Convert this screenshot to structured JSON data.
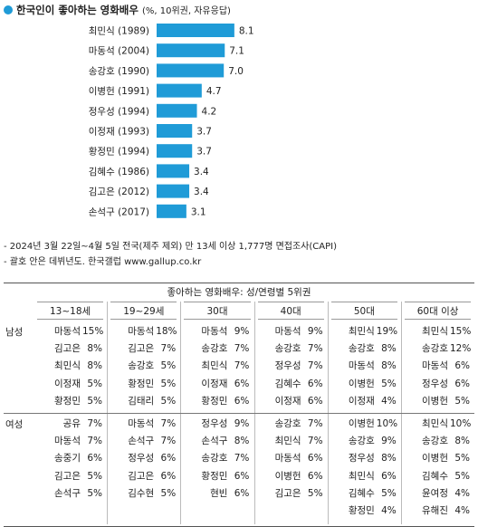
{
  "title": "한국인이 좋아하는 영화배우",
  "subtitle": "(%, 10위권, 자유응답)",
  "chart_data": {
    "type": "bar",
    "orientation": "horizontal",
    "categories": [
      "최민식 (1989)",
      "마동석 (2004)",
      "송강호 (1990)",
      "이병헌 (1991)",
      "정우성 (1994)",
      "이정재 (1993)",
      "황정민 (1994)",
      "김혜수 (1986)",
      "김고은 (2012)",
      "손석구 (2017)"
    ],
    "values": [
      8.1,
      7.1,
      7.0,
      4.7,
      4.2,
      3.7,
      3.7,
      3.4,
      3.4,
      3.1
    ],
    "value_labels": [
      "8.1",
      "7.1",
      "7.0",
      "4.7",
      "4.2",
      "3.7",
      "3.7",
      "3.4",
      "3.4",
      "3.1"
    ],
    "color": "#1f9bd7",
    "xlim": [
      0,
      10
    ]
  },
  "notes": [
    "- 2024년 3월 22일~4월 5일 전국(제주 제외) 만 13세 이상 1,777명 면접조사(CAPI)",
    "- 괄호 안은 데뷔년도. 한국갤럽 www.gallup.co.kr"
  ],
  "table": {
    "title": "좋아하는 영화배우: 성/연령별 5위권",
    "groups": [
      "13~18세",
      "19~29세",
      "30대",
      "40대",
      "50대",
      "60대 이상"
    ],
    "sections": [
      {
        "label": "남성",
        "columns": [
          [
            [
              "마동석",
              "15%"
            ],
            [
              "김고은",
              "8%"
            ],
            [
              "최민식",
              "8%"
            ],
            [
              "이정재",
              "5%"
            ],
            [
              "황정민",
              "5%"
            ]
          ],
          [
            [
              "마동석",
              "18%"
            ],
            [
              "김고은",
              "7%"
            ],
            [
              "송강호",
              "5%"
            ],
            [
              "황정민",
              "5%"
            ],
            [
              "김태리",
              "5%"
            ]
          ],
          [
            [
              "마동석",
              "9%"
            ],
            [
              "송강호",
              "7%"
            ],
            [
              "최민식",
              "7%"
            ],
            [
              "이정재",
              "6%"
            ],
            [
              "황정민",
              "6%"
            ]
          ],
          [
            [
              "마동석",
              "9%"
            ],
            [
              "송강호",
              "7%"
            ],
            [
              "정우성",
              "7%"
            ],
            [
              "김혜수",
              "6%"
            ],
            [
              "이정재",
              "6%"
            ]
          ],
          [
            [
              "최민식",
              "19%"
            ],
            [
              "송강호",
              "8%"
            ],
            [
              "마동석",
              "8%"
            ],
            [
              "이병헌",
              "5%"
            ],
            [
              "이정재",
              "4%"
            ]
          ],
          [
            [
              "최민식",
              "15%"
            ],
            [
              "송강호",
              "12%"
            ],
            [
              "마동석",
              "6%"
            ],
            [
              "정우성",
              "6%"
            ],
            [
              "이병헌",
              "5%"
            ]
          ]
        ]
      },
      {
        "label": "여성",
        "columns": [
          [
            [
              "공유",
              "7%"
            ],
            [
              "마동석",
              "7%"
            ],
            [
              "송중기",
              "6%"
            ],
            [
              "김고은",
              "5%"
            ],
            [
              "손석구",
              "5%"
            ]
          ],
          [
            [
              "마동석",
              "7%"
            ],
            [
              "손석구",
              "7%"
            ],
            [
              "정우성",
              "6%"
            ],
            [
              "김고은",
              "6%"
            ],
            [
              "김수현",
              "5%"
            ]
          ],
          [
            [
              "정우성",
              "9%"
            ],
            [
              "손석구",
              "8%"
            ],
            [
              "송강호",
              "7%"
            ],
            [
              "황정민",
              "6%"
            ],
            [
              "현빈",
              "6%"
            ]
          ],
          [
            [
              "송강호",
              "7%"
            ],
            [
              "최민식",
              "7%"
            ],
            [
              "마동석",
              "6%"
            ],
            [
              "이병헌",
              "6%"
            ],
            [
              "김고은",
              "5%"
            ]
          ],
          [
            [
              "이병헌",
              "10%"
            ],
            [
              "송강호",
              "9%"
            ],
            [
              "정우성",
              "8%"
            ],
            [
              "최민식",
              "6%"
            ],
            [
              "김혜수",
              "5%"
            ],
            [
              "황정민",
              "4%"
            ]
          ],
          [
            [
              "최민식",
              "10%"
            ],
            [
              "송강호",
              "8%"
            ],
            [
              "이병헌",
              "5%"
            ],
            [
              "김혜수",
              "5%"
            ],
            [
              "윤여정",
              "4%"
            ],
            [
              "유해진",
              "4%"
            ]
          ]
        ]
      }
    ]
  }
}
